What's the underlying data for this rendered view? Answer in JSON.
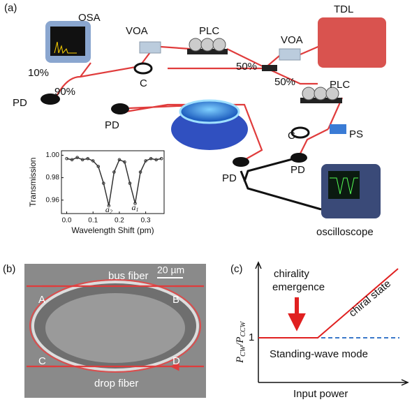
{
  "panel_a": {
    "tag": "(a)",
    "osa": "OSA",
    "split_10": "10%",
    "split_90": "90%",
    "pd_left": "PD",
    "voa_left": "VOA",
    "coupler_left": "C",
    "plc_top": "PLC",
    "split_50_top": "50%",
    "split_50_bottom": "50%",
    "tdl": "TDL",
    "voa_right": "VOA",
    "plc_right": "PLC",
    "ps": "PS",
    "pd_mid": "PD",
    "coupler_right": "C",
    "pd_bottom_left": "PD",
    "pd_bottom_right": "PD",
    "oscilloscope": "oscilloscope"
  },
  "chart_data": {
    "type": "line",
    "xlabel": "Wavelength Shift (pm)",
    "ylabel": "Transmission",
    "color": "#333333",
    "x": [
      0.0,
      0.02,
      0.04,
      0.06,
      0.08,
      0.1,
      0.12,
      0.14,
      0.16,
      0.18,
      0.2,
      0.22,
      0.24,
      0.26,
      0.28,
      0.3,
      0.32,
      0.34,
      0.36
    ],
    "values": [
      0.997,
      0.996,
      0.998,
      0.996,
      0.997,
      0.995,
      0.99,
      0.975,
      0.955,
      0.985,
      0.996,
      0.994,
      0.975,
      0.957,
      0.985,
      0.995,
      0.997,
      0.996,
      0.997
    ],
    "xlim": [
      -0.02,
      0.37
    ],
    "ylim": [
      0.948,
      1.004
    ],
    "xticks": [
      {
        "value": 0,
        "label": "0.0"
      },
      0.1,
      0.2,
      0.3
    ],
    "yticks": [
      0.96,
      0.98,
      {
        "value": 1,
        "label": "1.00"
      }
    ],
    "annotations": [
      {
        "x": 0.16,
        "y": 0.951,
        "text": "a",
        "sub": "2"
      },
      {
        "x": 0.26,
        "y": 0.953,
        "text": "a",
        "sub": "1"
      }
    ]
  },
  "panel_b": {
    "tag": "(b)",
    "bus": "bus fiber",
    "scale": "20  µm",
    "a": "A",
    "b": "B",
    "c": "C",
    "d": "D",
    "drop": "drop fiber"
  },
  "panel_c": {
    "tag": "(c)",
    "title_lines": [
      "chirality",
      "emergence"
    ],
    "chiral": "chiral state",
    "one": "1",
    "standing": "Standing-wave mode",
    "xlabel": "Input power",
    "ylabel": [
      "P",
      "CW",
      "/P",
      "CCW"
    ]
  }
}
